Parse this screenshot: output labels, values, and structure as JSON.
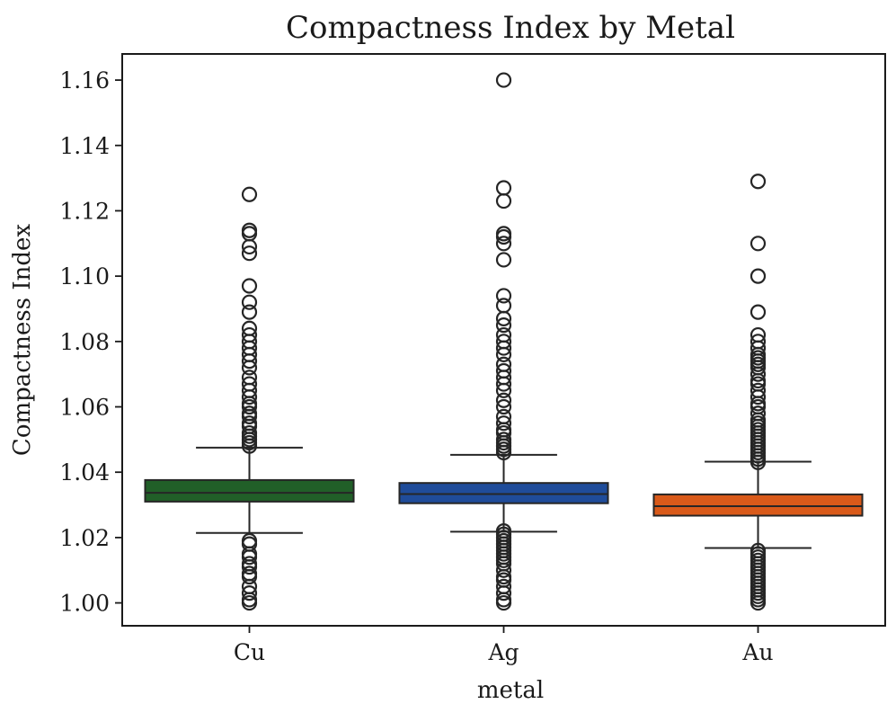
{
  "chart_data": {
    "type": "box",
    "title": "Compactness Index by Metal",
    "xlabel": "metal",
    "ylabel": "Compactness Index",
    "ylim": [
      0.993,
      1.168
    ],
    "yticks": [
      "1.00",
      "1.02",
      "1.04",
      "1.06",
      "1.08",
      "1.10",
      "1.12",
      "1.14",
      "1.16"
    ],
    "grid": false,
    "categories": [
      "Cu",
      "Ag",
      "Au"
    ],
    "boxes": [
      {
        "category": "Cu",
        "color": "#215f28",
        "whisker_low": 1.0214,
        "q1": 1.031,
        "median": 1.0337,
        "q3": 1.0376,
        "whisker_high": 1.0475,
        "outliers": [
          1.125,
          1.114,
          1.113,
          1.109,
          1.107,
          1.097,
          1.092,
          1.089,
          1.084,
          1.082,
          1.08,
          1.078,
          1.076,
          1.074,
          1.072,
          1.069,
          1.067,
          1.065,
          1.063,
          1.061,
          1.06,
          1.058,
          1.057,
          1.055,
          1.054,
          1.052,
          1.051,
          1.05,
          1.049,
          1.048,
          1.019,
          1.018,
          1.015,
          1.014,
          1.012,
          1.011,
          1.009,
          1.008,
          1.005,
          1.003,
          1.001,
          1.0
        ]
      },
      {
        "category": "Ag",
        "color": "#1f4c9a",
        "whisker_low": 1.0218,
        "q1": 1.0305,
        "median": 1.0333,
        "q3": 1.0367,
        "whisker_high": 1.0453,
        "outliers": [
          1.16,
          1.127,
          1.123,
          1.113,
          1.112,
          1.11,
          1.105,
          1.094,
          1.091,
          1.087,
          1.085,
          1.082,
          1.08,
          1.078,
          1.076,
          1.073,
          1.071,
          1.069,
          1.067,
          1.065,
          1.062,
          1.06,
          1.057,
          1.055,
          1.053,
          1.052,
          1.05,
          1.049,
          1.048,
          1.047,
          1.046,
          1.022,
          1.021,
          1.02,
          1.019,
          1.018,
          1.017,
          1.016,
          1.015,
          1.014,
          1.013,
          1.012,
          1.01,
          1.008,
          1.007,
          1.005,
          1.003,
          1.001,
          1.0
        ]
      },
      {
        "category": "Au",
        "color": "#d95a1a",
        "whisker_low": 1.0168,
        "q1": 1.0267,
        "median": 1.0296,
        "q3": 1.0332,
        "whisker_high": 1.0432,
        "outliers": [
          1.129,
          1.11,
          1.1,
          1.089,
          1.082,
          1.08,
          1.078,
          1.076,
          1.075,
          1.074,
          1.073,
          1.072,
          1.07,
          1.068,
          1.067,
          1.065,
          1.063,
          1.061,
          1.06,
          1.058,
          1.056,
          1.055,
          1.054,
          1.053,
          1.052,
          1.051,
          1.05,
          1.049,
          1.048,
          1.047,
          1.046,
          1.045,
          1.044,
          1.043,
          1.016,
          1.015,
          1.014,
          1.013,
          1.012,
          1.011,
          1.01,
          1.009,
          1.008,
          1.007,
          1.006,
          1.005,
          1.004,
          1.003,
          1.002,
          1.001,
          1.0
        ]
      }
    ]
  }
}
